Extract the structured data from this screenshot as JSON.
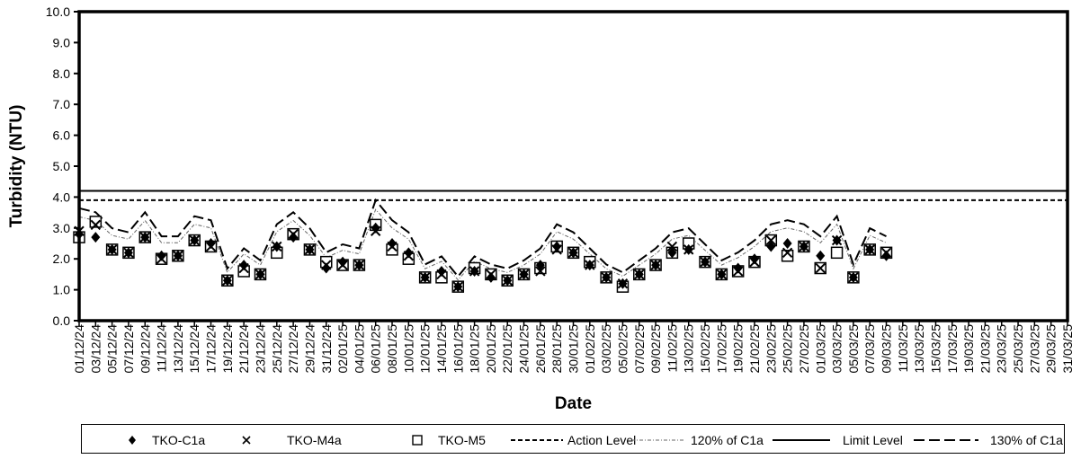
{
  "chart_data": {
    "type": "scatter",
    "xlabel": "Date",
    "ylabel": "Turbidity (NTU)",
    "ylim": [
      0,
      10
    ],
    "y_ticks": [
      "0.0",
      "1.0",
      "2.0",
      "3.0",
      "4.0",
      "5.0",
      "6.0",
      "7.0",
      "8.0",
      "9.0",
      "10.0"
    ],
    "x_tick_labels": [
      "01/12/24",
      "03/12/24",
      "05/12/24",
      "07/12/24",
      "09/12/24",
      "11/12/24",
      "13/12/24",
      "15/12/24",
      "17/12/24",
      "19/12/24",
      "21/12/24",
      "23/12/24",
      "25/12/24",
      "27/12/24",
      "29/12/24",
      "31/12/24",
      "02/01/25",
      "04/01/25",
      "06/01/25",
      "08/01/25",
      "10/01/25",
      "12/01/25",
      "14/01/25",
      "16/01/25",
      "18/01/25",
      "20/01/25",
      "22/01/25",
      "24/01/25",
      "26/01/25",
      "28/01/25",
      "30/01/25",
      "01/02/25",
      "03/02/25",
      "05/02/25",
      "07/02/25",
      "09/02/25",
      "11/02/25",
      "13/02/25",
      "15/02/25",
      "17/02/25",
      "19/02/25",
      "21/02/25",
      "23/02/25",
      "25/02/25",
      "27/02/25",
      "01/03/25",
      "03/03/25",
      "05/03/25",
      "07/03/25",
      "09/03/25",
      "11/03/25",
      "13/03/25",
      "15/03/25",
      "17/03/25",
      "19/03/25",
      "21/03/25",
      "23/03/25",
      "25/03/25",
      "27/03/25",
      "29/03/25",
      "31/03/25"
    ],
    "grid": false,
    "legend_position": "bottom",
    "action_level": 3.9,
    "limit_level": 4.2,
    "c1a": [
      [
        "01/12/24",
        2.8
      ],
      [
        "03/12/24",
        2.7
      ],
      [
        "05/12/24",
        2.3
      ],
      [
        "07/12/24",
        2.2
      ],
      [
        "09/12/24",
        2.7
      ],
      [
        "11/12/24",
        2.1
      ],
      [
        "13/12/24",
        2.1
      ],
      [
        "15/12/24",
        2.6
      ],
      [
        "17/12/24",
        2.5
      ],
      [
        "19/12/24",
        1.3
      ],
      [
        "21/12/24",
        1.8
      ],
      [
        "23/12/24",
        1.5
      ],
      [
        "25/12/24",
        2.4
      ],
      [
        "27/12/24",
        2.7
      ],
      [
        "29/12/24",
        2.3
      ],
      [
        "31/12/24",
        1.7
      ],
      [
        "02/01/25",
        1.9
      ],
      [
        "04/01/25",
        1.8
      ],
      [
        "06/01/25",
        3.0
      ],
      [
        "08/01/25",
        2.5
      ],
      [
        "10/01/25",
        2.2
      ],
      [
        "12/01/25",
        1.4
      ],
      [
        "14/01/25",
        1.6
      ],
      [
        "16/01/25",
        1.1
      ],
      [
        "18/01/25",
        1.6
      ],
      [
        "20/01/25",
        1.4
      ],
      [
        "22/01/25",
        1.3
      ],
      [
        "24/01/25",
        1.5
      ],
      [
        "26/01/25",
        1.8
      ],
      [
        "28/01/25",
        2.4
      ],
      [
        "30/01/25",
        2.2
      ],
      [
        "01/02/25",
        1.8
      ],
      [
        "03/02/25",
        1.4
      ],
      [
        "05/02/25",
        1.2
      ],
      [
        "07/02/25",
        1.5
      ],
      [
        "09/02/25",
        1.8
      ],
      [
        "11/02/25",
        2.2
      ],
      [
        "13/02/25",
        2.3
      ],
      [
        "15/02/25",
        1.9
      ],
      [
        "17/02/25",
        1.5
      ],
      [
        "19/02/25",
        1.7
      ],
      [
        "21/02/25",
        2.0
      ],
      [
        "23/02/25",
        2.4
      ],
      [
        "25/02/25",
        2.5
      ],
      [
        "27/02/25",
        2.4
      ],
      [
        "01/03/25",
        2.1
      ],
      [
        "03/03/25",
        2.6
      ],
      [
        "05/03/25",
        1.4
      ],
      [
        "07/03/25",
        2.3
      ],
      [
        "09/03/25",
        2.1
      ]
    ],
    "m4a": [
      [
        "01/12/24",
        2.9
      ],
      [
        "03/12/24",
        3.1
      ],
      [
        "05/12/24",
        2.3
      ],
      [
        "07/12/24",
        2.2
      ],
      [
        "09/12/24",
        2.7
      ],
      [
        "11/12/24",
        2.0
      ],
      [
        "13/12/24",
        2.1
      ],
      [
        "15/12/24",
        2.6
      ],
      [
        "17/12/24",
        2.4
      ],
      [
        "19/12/24",
        1.3
      ],
      [
        "21/12/24",
        1.7
      ],
      [
        "23/12/24",
        1.5
      ],
      [
        "25/12/24",
        2.4
      ],
      [
        "27/12/24",
        2.8
      ],
      [
        "29/12/24",
        2.3
      ],
      [
        "31/12/24",
        1.8
      ],
      [
        "02/01/25",
        1.8
      ],
      [
        "04/01/25",
        1.8
      ],
      [
        "06/01/25",
        2.9
      ],
      [
        "08/01/25",
        2.4
      ],
      [
        "10/01/25",
        2.1
      ],
      [
        "12/01/25",
        1.4
      ],
      [
        "14/01/25",
        1.5
      ],
      [
        "16/01/25",
        1.1
      ],
      [
        "18/01/25",
        1.6
      ],
      [
        "20/01/25",
        1.5
      ],
      [
        "22/01/25",
        1.3
      ],
      [
        "24/01/25",
        1.5
      ],
      [
        "26/01/25",
        1.6
      ],
      [
        "28/01/25",
        2.3
      ],
      [
        "30/01/25",
        2.2
      ],
      [
        "01/02/25",
        1.8
      ],
      [
        "03/02/25",
        1.4
      ],
      [
        "05/02/25",
        1.2
      ],
      [
        "07/02/25",
        1.5
      ],
      [
        "09/02/25",
        1.8
      ],
      [
        "11/02/25",
        2.4
      ],
      [
        "13/02/25",
        2.3
      ],
      [
        "15/02/25",
        1.9
      ],
      [
        "17/02/25",
        1.5
      ],
      [
        "19/02/25",
        1.6
      ],
      [
        "21/02/25",
        1.9
      ],
      [
        "23/02/25",
        2.6
      ],
      [
        "25/02/25",
        2.2
      ],
      [
        "27/02/25",
        2.4
      ],
      [
        "01/03/25",
        1.7
      ],
      [
        "03/03/25",
        2.6
      ],
      [
        "05/03/25",
        1.4
      ],
      [
        "07/03/25",
        2.3
      ],
      [
        "09/03/25",
        2.2
      ]
    ],
    "m5": [
      [
        "01/12/24",
        2.7
      ],
      [
        "03/12/24",
        3.2
      ],
      [
        "05/12/24",
        2.3
      ],
      [
        "07/12/24",
        2.2
      ],
      [
        "09/12/24",
        2.7
      ],
      [
        "11/12/24",
        2.0
      ],
      [
        "13/12/24",
        2.1
      ],
      [
        "15/12/24",
        2.6
      ],
      [
        "17/12/24",
        2.4
      ],
      [
        "19/12/24",
        1.3
      ],
      [
        "21/12/24",
        1.6
      ],
      [
        "23/12/24",
        1.5
      ],
      [
        "25/12/24",
        2.2
      ],
      [
        "27/12/24",
        2.8
      ],
      [
        "29/12/24",
        2.3
      ],
      [
        "31/12/24",
        1.9
      ],
      [
        "02/01/25",
        1.8
      ],
      [
        "04/01/25",
        1.8
      ],
      [
        "06/01/25",
        3.1
      ],
      [
        "08/01/25",
        2.3
      ],
      [
        "10/01/25",
        2.0
      ],
      [
        "12/01/25",
        1.4
      ],
      [
        "14/01/25",
        1.4
      ],
      [
        "16/01/25",
        1.1
      ],
      [
        "18/01/25",
        1.7
      ],
      [
        "20/01/25",
        1.5
      ],
      [
        "22/01/25",
        1.3
      ],
      [
        "24/01/25",
        1.5
      ],
      [
        "26/01/25",
        1.7
      ],
      [
        "28/01/25",
        2.4
      ],
      [
        "30/01/25",
        2.2
      ],
      [
        "01/02/25",
        1.9
      ],
      [
        "03/02/25",
        1.4
      ],
      [
        "05/02/25",
        1.1
      ],
      [
        "07/02/25",
        1.5
      ],
      [
        "09/02/25",
        1.8
      ],
      [
        "11/02/25",
        2.2
      ],
      [
        "13/02/25",
        2.5
      ],
      [
        "15/02/25",
        1.9
      ],
      [
        "17/02/25",
        1.5
      ],
      [
        "19/02/25",
        1.6
      ],
      [
        "21/02/25",
        1.9
      ],
      [
        "23/02/25",
        2.6
      ],
      [
        "25/02/25",
        2.1
      ],
      [
        "27/02/25",
        2.4
      ],
      [
        "01/03/25",
        1.7
      ],
      [
        "03/03/25",
        2.2
      ],
      [
        "05/03/25",
        1.4
      ],
      [
        "07/03/25",
        2.3
      ],
      [
        "09/03/25",
        2.2
      ]
    ],
    "series": [
      {
        "name": "TKO-C1a",
        "color": "#000000"
      },
      {
        "name": "TKO-M4a",
        "color": "#000000"
      },
      {
        "name": "TKO-M5",
        "color": "#000000"
      },
      {
        "name": "Action Level",
        "color": "#000000"
      },
      {
        "name": "120% of C1a",
        "color": "#555555"
      },
      {
        "name": "Limit Level",
        "color": "#000000"
      },
      {
        "name": "130% of C1a",
        "color": "#000000"
      }
    ]
  }
}
